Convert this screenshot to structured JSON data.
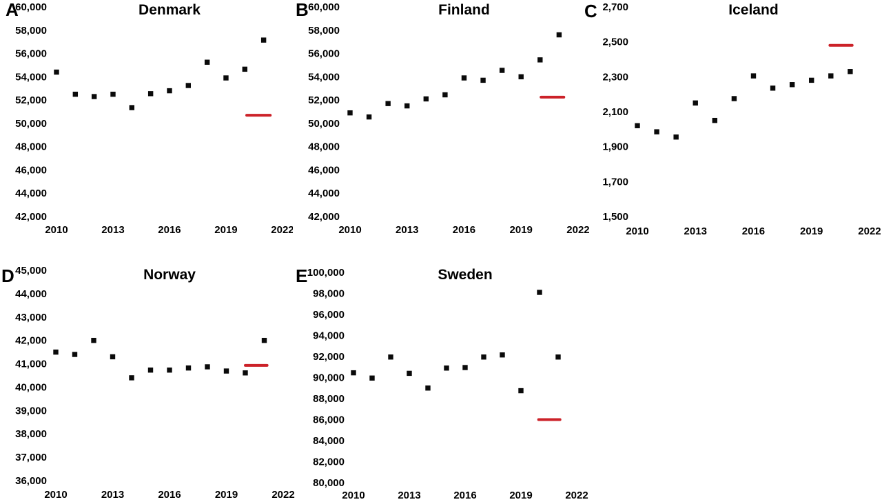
{
  "figure_title": "",
  "colors": {
    "background": "#ffffff",
    "marker": "#0a0a0a",
    "red_line": "#cc2229",
    "text": "#000000"
  },
  "chart_data": [
    {
      "type": "scatter",
      "panel_label": "A",
      "title": "Denmark",
      "marker": "black-square",
      "grid": false,
      "axes_visible": false,
      "x": [
        2010,
        2011,
        2012,
        2013,
        2014,
        2015,
        2016,
        2017,
        2018,
        2019,
        2020,
        2021
      ],
      "values": [
        54400,
        52500,
        52300,
        52500,
        51350,
        52550,
        52800,
        53250,
        55250,
        53900,
        54650,
        57150
      ],
      "red_line": {
        "value": 50700,
        "x_start": 2020.1,
        "x_end": 2021.35
      },
      "ylim": [
        42000,
        60000
      ],
      "xlim": [
        2010,
        2022
      ],
      "yticks": [
        "60,000",
        "58,000",
        "56,000",
        "54,000",
        "52,000",
        "50,000",
        "48,000",
        "46,000",
        "44,000",
        "42,000"
      ],
      "xticks": [
        "2010",
        "2013",
        "2016",
        "2019",
        "2022"
      ],
      "xlabel": "",
      "ylabel": ""
    },
    {
      "type": "scatter",
      "panel_label": "B",
      "title": "Finland",
      "marker": "black-square",
      "grid": false,
      "axes_visible": false,
      "x": [
        2010,
        2011,
        2012,
        2013,
        2014,
        2015,
        2016,
        2017,
        2018,
        2019,
        2020,
        2021
      ],
      "values": [
        50900,
        50550,
        51700,
        51500,
        52100,
        52450,
        53900,
        53700,
        54550,
        54000,
        55450,
        57600
      ],
      "red_line": {
        "value": 52250,
        "x_start": 2020.05,
        "x_end": 2021.25
      },
      "ylim": [
        42000,
        60000
      ],
      "xlim": [
        2010,
        2022
      ],
      "yticks": [
        "60,000",
        "58,000",
        "56,000",
        "54,000",
        "52,000",
        "50,000",
        "48,000",
        "46,000",
        "44,000",
        "42,000"
      ],
      "xticks": [
        "2010",
        "2013",
        "2016",
        "2019",
        "2022"
      ],
      "xlabel": "",
      "ylabel": ""
    },
    {
      "type": "scatter",
      "panel_label": "C",
      "title": "Iceland",
      "marker": "black-square",
      "grid": false,
      "axes_visible": false,
      "x": [
        2010,
        2011,
        2012,
        2013,
        2014,
        2015,
        2016,
        2017,
        2018,
        2019,
        2020,
        2021
      ],
      "values": [
        2020,
        1985,
        1955,
        2150,
        2050,
        2175,
        2305,
        2235,
        2255,
        2280,
        2305,
        2330
      ],
      "red_line": {
        "value": 2480,
        "x_start": 2019.95,
        "x_end": 2021.1
      },
      "ylim": [
        1500,
        2700
      ],
      "xlim": [
        2010,
        2022
      ],
      "yticks": [
        "2,700",
        "2,500",
        "2,300",
        "2,100",
        "1,900",
        "1,700",
        "1,500"
      ],
      "xticks": [
        "2010",
        "2013",
        "2016",
        "2019",
        "2022"
      ],
      "xlabel": "",
      "ylabel": ""
    },
    {
      "type": "scatter",
      "panel_label": "D",
      "title": "Norway",
      "marker": "black-square",
      "grid": false,
      "axes_visible": false,
      "x": [
        2010,
        2011,
        2012,
        2013,
        2014,
        2015,
        2016,
        2017,
        2018,
        2019,
        2020,
        2021
      ],
      "values": [
        41500,
        41400,
        42000,
        41300,
        40400,
        40730,
        40730,
        40820,
        40870,
        40690,
        40610,
        42000
      ],
      "red_line": {
        "value": 40930,
        "x_start": 2020.0,
        "x_end": 2021.15
      },
      "ylim": [
        36000,
        45000
      ],
      "xlim": [
        2010,
        2022
      ],
      "yticks": [
        "45,000",
        "44,000",
        "43,000",
        "42,000",
        "41,000",
        "40,000",
        "39,000",
        "38,000",
        "37,000",
        "36,000"
      ],
      "xticks": [
        "2010",
        "2013",
        "2016",
        "2019",
        "2022"
      ],
      "xlabel": "",
      "ylabel": ""
    },
    {
      "type": "scatter",
      "panel_label": "E",
      "title": "Sweden",
      "marker": "black-square",
      "grid": false,
      "axes_visible": false,
      "x": [
        2010,
        2011,
        2012,
        2013,
        2014,
        2015,
        2016,
        2017,
        2018,
        2019,
        2020,
        2021
      ],
      "values": [
        90450,
        89950,
        91950,
        90400,
        89000,
        90900,
        90950,
        91950,
        92150,
        88750,
        98100,
        91950
      ],
      "red_line": {
        "value": 86000,
        "x_start": 2019.95,
        "x_end": 2021.1
      },
      "ylim": [
        80000,
        100000
      ],
      "xlim": [
        2010,
        2022
      ],
      "yticks": [
        "100,000",
        "98,000",
        "96,000",
        "94,000",
        "92,000",
        "90,000",
        "88,000",
        "86,000",
        "84,000",
        "82,000",
        "80,000"
      ],
      "xticks": [
        "2010",
        "2013",
        "2016",
        "2019",
        "2022"
      ],
      "xlabel": "",
      "ylabel": ""
    }
  ]
}
